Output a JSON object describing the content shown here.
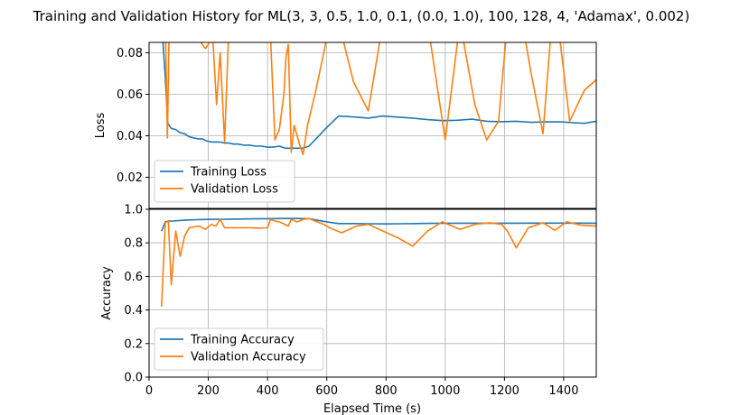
{
  "chart_data": {
    "type": "line",
    "title": "Training and Validation History for ML(3, 3, 0.5, 1.0, 0.1, (0.0, 1.0), 100, 128, 4, 'Adamax', 0.002)",
    "xlabel": "Elapsed Time (s)",
    "xlim": [
      0,
      1510
    ],
    "x_ticks": [
      0,
      200,
      400,
      600,
      800,
      1000,
      1200,
      1400
    ],
    "grid": true,
    "colors": {
      "training": "#1f77b4",
      "validation": "#ff7f0e",
      "grid": "#b0b0b0"
    },
    "panels": [
      {
        "id": "loss",
        "ylabel": "Loss",
        "ylim": [
          0.005,
          0.085
        ],
        "y_ticks": [
          0.02,
          0.04,
          0.06,
          0.08
        ],
        "y_tick_labels": [
          "0.02",
          "0.04",
          "0.06",
          "0.08"
        ],
        "legend_position": "lower-left",
        "series": [
          {
            "name": "Training Loss",
            "color": "#1f77b4",
            "x": [
              42,
              55,
              63,
              75,
              90,
              105,
              120,
              135,
              150,
              165,
              180,
              195,
              210,
              225,
              240,
              255,
              270,
              285,
              300,
              320,
              340,
              360,
              380,
              400,
              420,
              440,
              460,
              480,
              500,
              520,
              540,
              600,
              640,
              700,
              740,
              790,
              840,
              890,
              940,
              990,
              1040,
              1090,
              1140,
              1190,
              1240,
              1290,
              1340,
              1390,
              1440,
              1470,
              1510
            ],
            "y": [
              0.095,
              0.068,
              0.046,
              0.0435,
              0.043,
              0.0415,
              0.041,
              0.0395,
              0.039,
              0.0385,
              0.0385,
              0.0375,
              0.037,
              0.037,
              0.037,
              0.0365,
              0.0365,
              0.036,
              0.036,
              0.0355,
              0.0355,
              0.035,
              0.035,
              0.0345,
              0.0345,
              0.035,
              0.034,
              0.034,
              0.034,
              0.034,
              0.035,
              0.044,
              0.0495,
              0.049,
              0.0485,
              0.0495,
              0.049,
              0.0485,
              0.0478,
              0.0473,
              0.0475,
              0.048,
              0.047,
              0.0468,
              0.047,
              0.0465,
              0.0467,
              0.0467,
              0.0462,
              0.046,
              0.047
            ]
          },
          {
            "name": "Validation Loss",
            "color": "#ff7f0e",
            "x": [
              42,
              55,
              62,
              68,
              80,
              95,
              110,
              130,
              150,
              170,
              190,
              200,
              212,
              228,
              240,
              255,
              270,
              290,
              310,
              340,
              360,
              380,
              400,
              410,
              425,
              440,
              455,
              462,
              470,
              480,
              490,
              500,
              510,
              520,
              535,
              560,
              590,
              610,
              640,
              690,
              740,
              790,
              840,
              890,
              940,
              1000,
              1050,
              1100,
              1140,
              1180,
              1210,
              1260,
              1290,
              1330,
              1360,
              1380,
              1420,
              1470,
              1510
            ],
            "y": [
              0.095,
              0.095,
              0.039,
              0.095,
              0.095,
              0.095,
              0.095,
              0.095,
              0.095,
              0.086,
              0.082,
              0.084,
              0.095,
              0.055,
              0.08,
              0.037,
              0.095,
              0.095,
              0.095,
              0.095,
              0.095,
              0.095,
              0.095,
              0.088,
              0.038,
              0.043,
              0.06,
              0.078,
              0.084,
              0.032,
              0.045,
              0.04,
              0.035,
              0.031,
              0.045,
              0.06,
              0.08,
              0.095,
              0.095,
              0.066,
              0.052,
              0.095,
              0.095,
              0.095,
              0.095,
              0.038,
              0.095,
              0.055,
              0.038,
              0.047,
              0.095,
              0.095,
              0.07,
              0.041,
              0.095,
              0.095,
              0.047,
              0.062,
              0.067
            ]
          }
        ]
      },
      {
        "id": "accuracy",
        "ylabel": "Accuracy",
        "ylim": [
          0.0,
          1.0
        ],
        "y_ticks": [
          0.0,
          0.2,
          0.4,
          0.6,
          0.8,
          1.0
        ],
        "y_tick_labels": [
          "0.0",
          "0.2",
          "0.4",
          "0.6",
          "0.8",
          "1.0"
        ],
        "legend_position": "lower-left",
        "series": [
          {
            "name": "Training Accuracy",
            "color": "#1f77b4",
            "x": [
              42,
              55,
              65,
              80,
              100,
              120,
              140,
              160,
              180,
              200,
              250,
              300,
              350,
              400,
              450,
              500,
              540,
              600,
              640,
              700,
              740,
              800,
              850,
              900,
              950,
              1000,
              1050,
              1100,
              1150,
              1200,
              1250,
              1300,
              1350,
              1400,
              1450,
              1510
            ],
            "y": [
              0.87,
              0.925,
              0.93,
              0.93,
              0.933,
              0.935,
              0.937,
              0.938,
              0.939,
              0.94,
              0.941,
              0.942,
              0.943,
              0.944,
              0.945,
              0.945,
              0.944,
              0.925,
              0.915,
              0.915,
              0.914,
              0.913,
              0.914,
              0.915,
              0.916,
              0.917,
              0.917,
              0.917,
              0.917,
              0.917,
              0.917,
              0.918,
              0.918,
              0.918,
              0.918,
              0.917
            ]
          },
          {
            "name": "Validation Accuracy",
            "color": "#ff7f0e",
            "x": [
              42,
              55,
              65,
              75,
              90,
              105,
              120,
              135,
              150,
              170,
              190,
              210,
              225,
              240,
              255,
              270,
              300,
              340,
              370,
              400,
              410,
              425,
              440,
              470,
              480,
              500,
              520,
              540,
              590,
              610,
              650,
              700,
              740,
              790,
              840,
              890,
              940,
              990,
              1050,
              1100,
              1150,
              1190,
              1210,
              1240,
              1280,
              1330,
              1370,
              1410,
              1460,
              1510
            ],
            "y": [
              0.42,
              0.92,
              0.93,
              0.55,
              0.87,
              0.72,
              0.84,
              0.89,
              0.895,
              0.9,
              0.88,
              0.91,
              0.9,
              0.94,
              0.89,
              0.89,
              0.89,
              0.89,
              0.888,
              0.89,
              0.94,
              0.93,
              0.925,
              0.9,
              0.94,
              0.925,
              0.94,
              0.945,
              0.91,
              0.89,
              0.86,
              0.9,
              0.91,
              0.87,
              0.83,
              0.78,
              0.87,
              0.925,
              0.88,
              0.91,
              0.92,
              0.91,
              0.87,
              0.77,
              0.89,
              0.92,
              0.875,
              0.925,
              0.905,
              0.9
            ]
          }
        ]
      }
    ]
  }
}
